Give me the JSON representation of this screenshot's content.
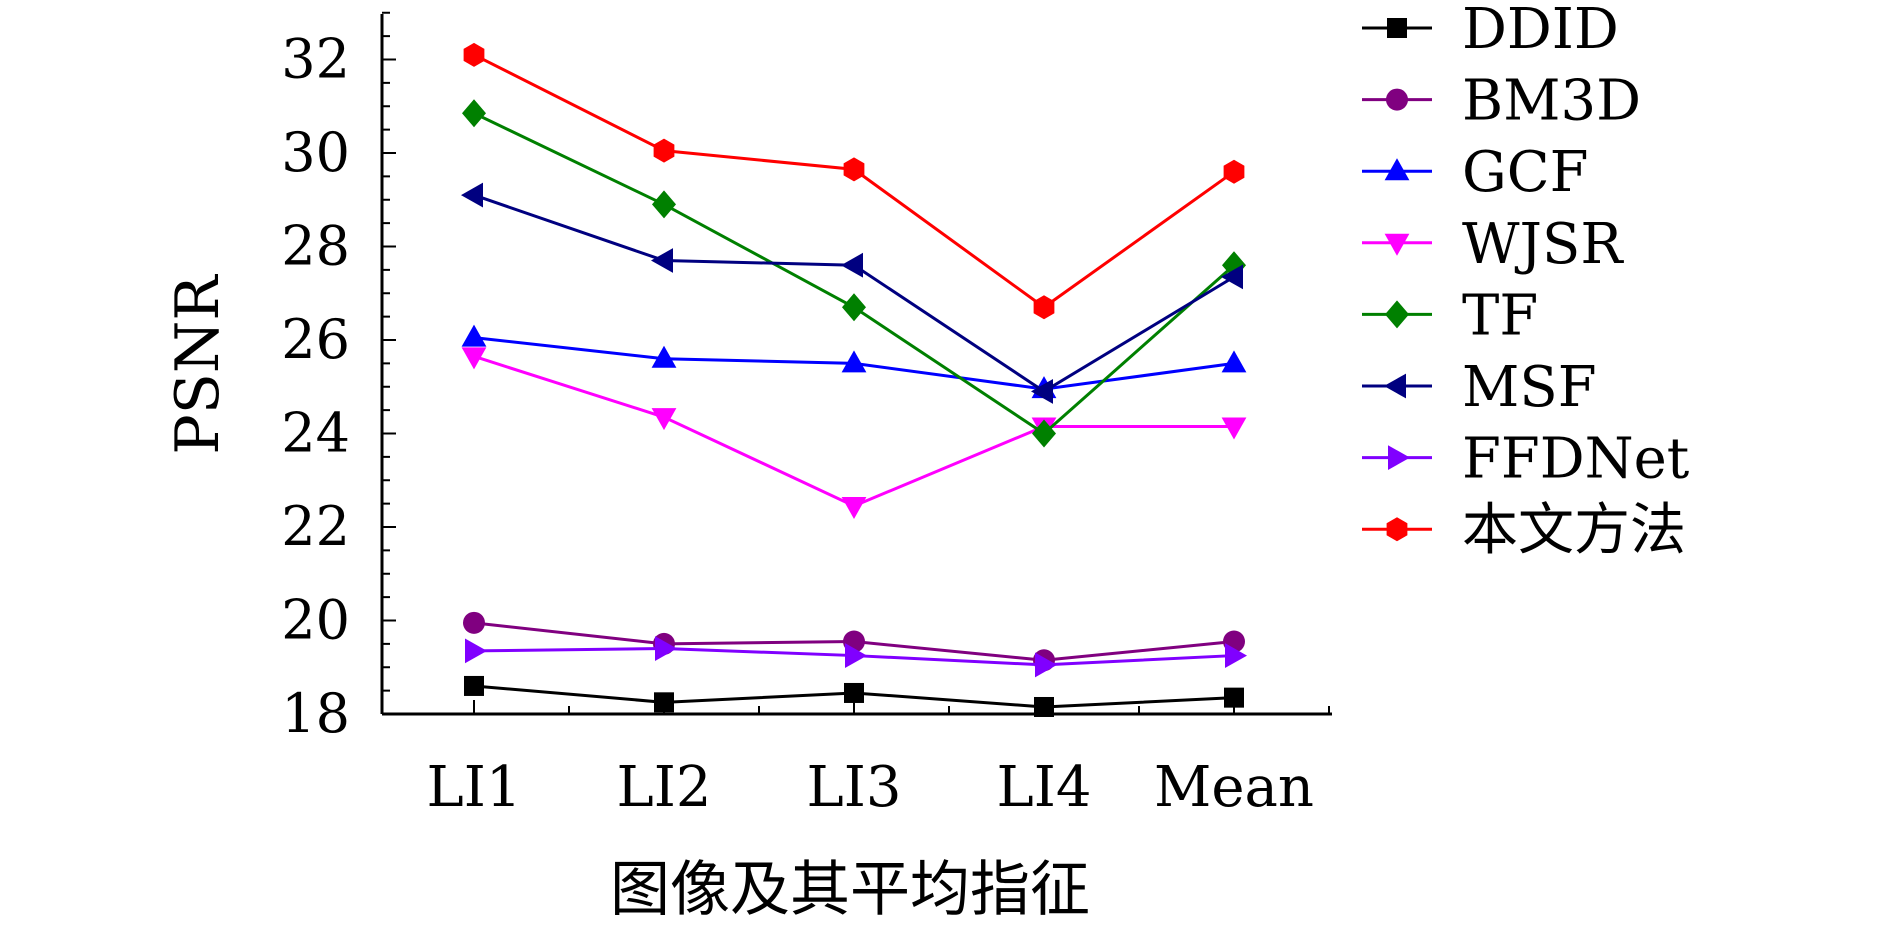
{
  "chart_data": {
    "type": "line",
    "title": "",
    "xlabel": "图像及其平均指征",
    "ylabel": "PSNR",
    "categories": [
      "LI1",
      "LI2",
      "LI3",
      "LI4",
      "Mean"
    ],
    "ylim": [
      18,
      33
    ],
    "yticks": [
      18,
      20,
      22,
      24,
      26,
      28,
      30,
      32
    ],
    "grid": false,
    "legend_position": "right",
    "series": [
      {
        "name": "DDID",
        "color": "#000000",
        "marker": "square",
        "values": [
          18.6,
          18.25,
          18.45,
          18.15,
          18.35
        ]
      },
      {
        "name": "BM3D",
        "color": "#800080",
        "marker": "circle",
        "values": [
          19.95,
          19.5,
          19.55,
          19.15,
          19.55
        ]
      },
      {
        "name": "GCF",
        "color": "#0000ff",
        "marker": "triangle-up",
        "values": [
          26.05,
          25.6,
          25.5,
          24.95,
          25.5
        ]
      },
      {
        "name": "WJSR",
        "color": "#ff00ff",
        "marker": "triangle-down",
        "values": [
          25.65,
          24.35,
          22.45,
          24.15,
          24.15
        ]
      },
      {
        "name": "TF",
        "color": "#008000",
        "marker": "diamond",
        "values": [
          30.85,
          28.9,
          26.7,
          24.0,
          27.6
        ]
      },
      {
        "name": "MSF",
        "color": "#000080",
        "marker": "triangle-left",
        "values": [
          29.1,
          27.7,
          27.6,
          24.9,
          27.35
        ]
      },
      {
        "name": "FFDNet",
        "color": "#8000ff",
        "marker": "triangle-right",
        "values": [
          19.35,
          19.4,
          19.25,
          19.05,
          19.25
        ]
      },
      {
        "name": "本文方法",
        "color": "#ff0000",
        "marker": "hexagon",
        "values": [
          32.1,
          30.05,
          29.65,
          26.7,
          29.6
        ]
      }
    ]
  }
}
